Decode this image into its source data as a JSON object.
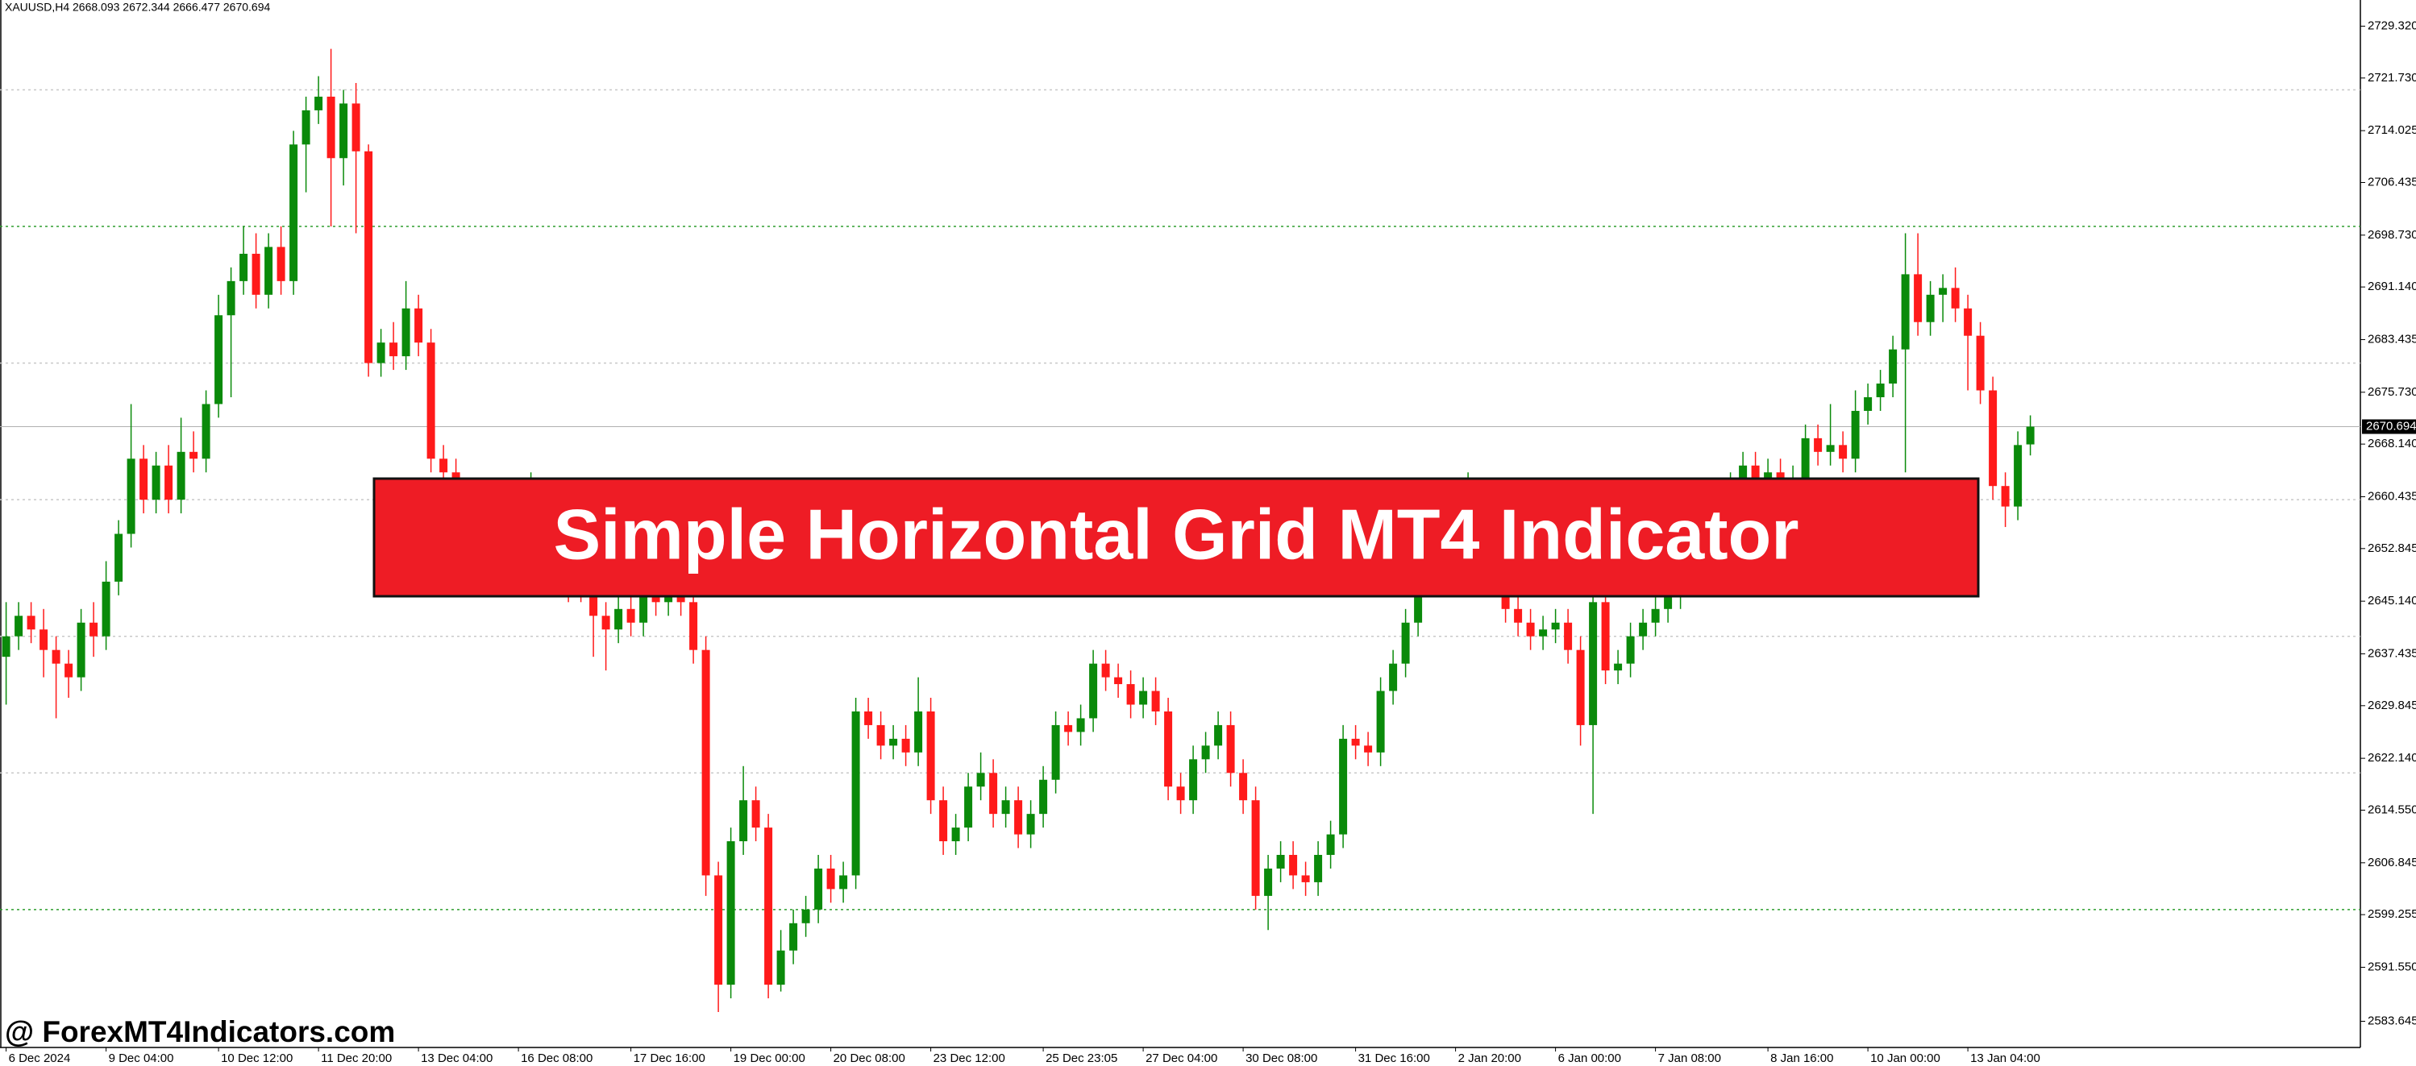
{
  "chart_data": {
    "type": "candlestick",
    "header": "XAUUSD,H4  2668.093 2672.344 2666.477 2670.694",
    "banner": "Simple Horizontal Grid MT4 Indicator",
    "watermark": "@ ForexMT4Indicators.com",
    "up_color": "#0a8a0a",
    "down_color": "#ff1a1a",
    "categories": [
      "6 Dec 2024",
      null,
      null,
      null,
      null,
      null,
      null,
      null,
      "9 Dec 04:00",
      null,
      null,
      null,
      null,
      null,
      null,
      null,
      null,
      "10 Dec 12:00",
      null,
      null,
      null,
      null,
      null,
      null,
      null,
      "11 Dec 20:00",
      null,
      null,
      null,
      null,
      null,
      null,
      null,
      "13 Dec 04:00",
      null,
      null,
      null,
      null,
      null,
      null,
      null,
      "16 Dec 08:00",
      null,
      null,
      null,
      null,
      null,
      null,
      null,
      null,
      "17 Dec 16:00",
      null,
      null,
      null,
      null,
      null,
      null,
      null,
      "19 Dec 00:00",
      null,
      null,
      null,
      null,
      null,
      null,
      null,
      "20 Dec 08:00",
      null,
      null,
      null,
      null,
      null,
      null,
      null,
      "23 Dec 12:00",
      null,
      null,
      null,
      null,
      null,
      null,
      null,
      null,
      "25 Dec 23:05",
      null,
      null,
      null,
      null,
      null,
      null,
      null,
      "27 Dec 04:00",
      null,
      null,
      null,
      null,
      null,
      null,
      null,
      "30 Dec 08:00",
      null,
      null,
      null,
      null,
      null,
      null,
      null,
      null,
      "31 Dec 16:00",
      null,
      null,
      null,
      null,
      null,
      null,
      null,
      "2 Jan 20:00",
      null,
      null,
      null,
      null,
      null,
      null,
      null,
      "6 Jan 00:00",
      null,
      null,
      null,
      null,
      null,
      null,
      null,
      "7 Jan 08:00",
      null,
      null,
      null,
      null,
      null,
      null,
      null,
      null,
      "8 Jan 16:00",
      null,
      null,
      null,
      null,
      null,
      null,
      null,
      "10 Jan 00:00",
      null,
      null,
      null,
      null,
      null,
      null,
      null,
      "13 Jan 04:00",
      null,
      null,
      null,
      null,
      null
    ],
    "ohlc": [
      [
        2637,
        2645,
        2630,
        2640
      ],
      [
        2640,
        2645,
        2638,
        2643
      ],
      [
        2643,
        2645,
        2639,
        2641
      ],
      [
        2641,
        2644,
        2634,
        2638
      ],
      [
        2638,
        2640,
        2628,
        2636
      ],
      [
        2636,
        2638,
        2631,
        2634
      ],
      [
        2634,
        2644,
        2632,
        2642
      ],
      [
        2642,
        2645,
        2637,
        2640
      ],
      [
        2640,
        2651,
        2638,
        2648
      ],
      [
        2648,
        2657,
        2646,
        2655
      ],
      [
        2655,
        2674,
        2653,
        2666
      ],
      [
        2666,
        2668,
        2658,
        2660
      ],
      [
        2660,
        2667,
        2658,
        2665
      ],
      [
        2665,
        2668,
        2658,
        2660
      ],
      [
        2660,
        2672,
        2658,
        2667
      ],
      [
        2667,
        2670,
        2664,
        2666
      ],
      [
        2666,
        2676,
        2664,
        2674
      ],
      [
        2674,
        2690,
        2672,
        2687
      ],
      [
        2687,
        2694,
        2675,
        2692
      ],
      [
        2692,
        2700,
        2690,
        2696
      ],
      [
        2696,
        2699,
        2688,
        2690
      ],
      [
        2690,
        2699,
        2688,
        2697
      ],
      [
        2697,
        2700,
        2690,
        2692
      ],
      [
        2692,
        2714,
        2690,
        2712
      ],
      [
        2712,
        2719,
        2705,
        2717
      ],
      [
        2717,
        2722,
        2715,
        2719
      ],
      [
        2719,
        2726,
        2700,
        2710
      ],
      [
        2710,
        2720,
        2706,
        2718
      ],
      [
        2718,
        2721,
        2699,
        2711
      ],
      [
        2711,
        2712,
        2678,
        2680
      ],
      [
        2680,
        2685,
        2678,
        2683
      ],
      [
        2683,
        2686,
        2679,
        2681
      ],
      [
        2681,
        2692,
        2679,
        2688
      ],
      [
        2688,
        2690,
        2681,
        2683
      ],
      [
        2683,
        2685,
        2664,
        2666
      ],
      [
        2666,
        2668,
        2661,
        2664
      ],
      [
        2664,
        2666,
        2658,
        2660
      ],
      [
        2660,
        2662,
        2654,
        2657
      ],
      [
        2657,
        2659,
        2652,
        2655
      ],
      [
        2655,
        2661,
        2653,
        2658
      ],
      [
        2658,
        2660,
        2654,
        2656
      ],
      [
        2656,
        2662,
        2654,
        2660
      ],
      [
        2660,
        2664,
        2658,
        2661
      ],
      [
        2661,
        2663,
        2654,
        2656
      ],
      [
        2656,
        2658,
        2650,
        2652
      ],
      [
        2652,
        2654,
        2645,
        2650
      ],
      [
        2650,
        2652,
        2645,
        2647
      ],
      [
        2647,
        2649,
        2637,
        2643
      ],
      [
        2643,
        2645,
        2635,
        2641
      ],
      [
        2641,
        2647,
        2639,
        2644
      ],
      [
        2644,
        2646,
        2640,
        2642
      ],
      [
        2642,
        2649,
        2640,
        2647
      ],
      [
        2647,
        2649,
        2643,
        2645
      ],
      [
        2645,
        2650,
        2643,
        2648
      ],
      [
        2648,
        2650,
        2643,
        2645
      ],
      [
        2645,
        2647,
        2636,
        2638
      ],
      [
        2638,
        2640,
        2602,
        2605
      ],
      [
        2605,
        2607,
        2585,
        2589
      ],
      [
        2589,
        2612,
        2587,
        2610
      ],
      [
        2610,
        2621,
        2608,
        2616
      ],
      [
        2616,
        2618,
        2610,
        2612
      ],
      [
        2612,
        2614,
        2587,
        2589
      ],
      [
        2589,
        2597,
        2588,
        2594
      ],
      [
        2594,
        2600,
        2592,
        2598
      ],
      [
        2598,
        2602,
        2596,
        2600
      ],
      [
        2600,
        2608,
        2598,
        2606
      ],
      [
        2606,
        2608,
        2601,
        2603
      ],
      [
        2603,
        2607,
        2601,
        2605
      ],
      [
        2605,
        2631,
        2603,
        2629
      ],
      [
        2629,
        2631,
        2625,
        2627
      ],
      [
        2627,
        2629,
        2622,
        2624
      ],
      [
        2624,
        2627,
        2622,
        2625
      ],
      [
        2625,
        2627,
        2621,
        2623
      ],
      [
        2623,
        2634,
        2621,
        2629
      ],
      [
        2629,
        2631,
        2614,
        2616
      ],
      [
        2616,
        2618,
        2608,
        2610
      ],
      [
        2610,
        2614,
        2608,
        2612
      ],
      [
        2612,
        2620,
        2610,
        2618
      ],
      [
        2618,
        2623,
        2616,
        2620
      ],
      [
        2620,
        2622,
        2612,
        2614
      ],
      [
        2614,
        2618,
        2612,
        2616
      ],
      [
        2616,
        2618,
        2609,
        2611
      ],
      [
        2611,
        2616,
        2609,
        2614
      ],
      [
        2614,
        2621,
        2612,
        2619
      ],
      [
        2619,
        2629,
        2617,
        2627
      ],
      [
        2627,
        2629,
        2624,
        2626
      ],
      [
        2626,
        2630,
        2624,
        2628
      ],
      [
        2628,
        2638,
        2626,
        2636
      ],
      [
        2636,
        2638,
        2632,
        2634
      ],
      [
        2634,
        2636,
        2631,
        2633
      ],
      [
        2633,
        2635,
        2628,
        2630
      ],
      [
        2630,
        2634,
        2628,
        2632
      ],
      [
        2632,
        2634,
        2627,
        2629
      ],
      [
        2629,
        2631,
        2616,
        2618
      ],
      [
        2618,
        2620,
        2614,
        2616
      ],
      [
        2616,
        2624,
        2614,
        2622
      ],
      [
        2622,
        2626,
        2620,
        2624
      ],
      [
        2624,
        2629,
        2622,
        2627
      ],
      [
        2627,
        2629,
        2618,
        2620
      ],
      [
        2620,
        2622,
        2614,
        2616
      ],
      [
        2616,
        2618,
        2600,
        2602
      ],
      [
        2602,
        2608,
        2597,
        2606
      ],
      [
        2606,
        2610,
        2604,
        2608
      ],
      [
        2608,
        2610,
        2603,
        2605
      ],
      [
        2605,
        2607,
        2602,
        2604
      ],
      [
        2604,
        2610,
        2602,
        2608
      ],
      [
        2608,
        2613,
        2606,
        2611
      ],
      [
        2611,
        2627,
        2609,
        2625
      ],
      [
        2625,
        2627,
        2622,
        2624
      ],
      [
        2624,
        2626,
        2621,
        2623
      ],
      [
        2623,
        2634,
        2621,
        2632
      ],
      [
        2632,
        2638,
        2630,
        2636
      ],
      [
        2636,
        2644,
        2634,
        2642
      ],
      [
        2642,
        2652,
        2640,
        2650
      ],
      [
        2650,
        2654,
        2648,
        2652
      ],
      [
        2652,
        2657,
        2650,
        2655
      ],
      [
        2655,
        2659,
        2653,
        2657
      ],
      [
        2657,
        2664,
        2655,
        2659
      ],
      [
        2659,
        2661,
        2653,
        2655
      ],
      [
        2655,
        2657,
        2648,
        2650
      ],
      [
        2650,
        2652,
        2642,
        2644
      ],
      [
        2644,
        2646,
        2640,
        2642
      ],
      [
        2642,
        2644,
        2638,
        2640
      ],
      [
        2640,
        2643,
        2638,
        2641
      ],
      [
        2641,
        2644,
        2639,
        2642
      ],
      [
        2642,
        2644,
        2636,
        2638
      ],
      [
        2638,
        2640,
        2624,
        2627
      ],
      [
        2627,
        2647,
        2614,
        2645
      ],
      [
        2645,
        2647,
        2633,
        2635
      ],
      [
        2635,
        2638,
        2633,
        2636
      ],
      [
        2636,
        2642,
        2634,
        2640
      ],
      [
        2640,
        2644,
        2638,
        2642
      ],
      [
        2642,
        2646,
        2640,
        2644
      ],
      [
        2644,
        2648,
        2642,
        2646
      ],
      [
        2646,
        2652,
        2644,
        2650
      ],
      [
        2650,
        2656,
        2648,
        2654
      ],
      [
        2654,
        2659,
        2652,
        2657
      ],
      [
        2657,
        2662,
        2655,
        2660
      ],
      [
        2660,
        2664,
        2658,
        2662
      ],
      [
        2662,
        2667,
        2660,
        2665
      ],
      [
        2665,
        2667,
        2659,
        2661
      ],
      [
        2661,
        2666,
        2659,
        2664
      ],
      [
        2664,
        2666,
        2658,
        2660
      ],
      [
        2660,
        2665,
        2658,
        2663
      ],
      [
        2663,
        2671,
        2661,
        2669
      ],
      [
        2669,
        2671,
        2665,
        2667
      ],
      [
        2667,
        2674,
        2665,
        2668
      ],
      [
        2668,
        2670,
        2664,
        2666
      ],
      [
        2666,
        2676,
        2664,
        2673
      ],
      [
        2673,
        2677,
        2671,
        2675
      ],
      [
        2675,
        2679,
        2673,
        2677
      ],
      [
        2677,
        2684,
        2675,
        2682
      ],
      [
        2682,
        2699,
        2664,
        2693
      ],
      [
        2693,
        2699,
        2684,
        2686
      ],
      [
        2686,
        2692,
        2684,
        2690
      ],
      [
        2690,
        2693,
        2686,
        2691
      ],
      [
        2691,
        2694,
        2686,
        2688
      ],
      [
        2688,
        2690,
        2676,
        2684
      ],
      [
        2684,
        2686,
        2674,
        2676
      ],
      [
        2676,
        2678,
        2660,
        2662
      ],
      [
        2662,
        2664,
        2656,
        2659
      ],
      [
        2659,
        2670,
        2657,
        2668
      ],
      [
        2668.093,
        2672.344,
        2666.477,
        2670.694
      ]
    ],
    "ylim": [
      2579.81,
      2733.15
    ],
    "yticks": [
      {
        "value": 2729.32,
        "label": "2729.320"
      },
      {
        "value": 2721.73,
        "label": "2721.730"
      },
      {
        "value": 2714.025,
        "label": "2714.025"
      },
      {
        "value": 2706.435,
        "label": "2706.435"
      },
      {
        "value": 2698.73,
        "label": "2698.730"
      },
      {
        "value": 2691.14,
        "label": "2691.140"
      },
      {
        "value": 2683.435,
        "label": "2683.435"
      },
      {
        "value": 2675.73,
        "label": "2675.730"
      },
      {
        "value": 2668.14,
        "label": "2668.140"
      },
      {
        "value": 2660.435,
        "label": "2660.435"
      },
      {
        "value": 2652.845,
        "label": "2652.845"
      },
      {
        "value": 2645.14,
        "label": "2645.140"
      },
      {
        "value": 2637.435,
        "label": "2637.435"
      },
      {
        "value": 2629.845,
        "label": "2629.845"
      },
      {
        "value": 2622.14,
        "label": "2622.140"
      },
      {
        "value": 2614.55,
        "label": "2614.550"
      },
      {
        "value": 2606.845,
        "label": "2606.845"
      },
      {
        "value": 2599.255,
        "label": "2599.255"
      },
      {
        "value": 2591.55,
        "label": "2591.550"
      },
      {
        "value": 2583.645,
        "label": "2583.645"
      }
    ],
    "grid_lines": [
      {
        "value": 2720,
        "color": "#c8c8c8"
      },
      {
        "value": 2700,
        "color": "#2e9e2e"
      },
      {
        "value": 2680,
        "color": "#c8c8c8"
      },
      {
        "value": 2660,
        "color": "#c8c8c8"
      },
      {
        "value": 2640,
        "color": "#c8c8c8"
      },
      {
        "value": 2620,
        "color": "#c8c8c8"
      },
      {
        "value": 2600,
        "color": "#2e9e2e"
      }
    ],
    "last_price": {
      "value": 2670.694,
      "label": "2670.694"
    }
  }
}
